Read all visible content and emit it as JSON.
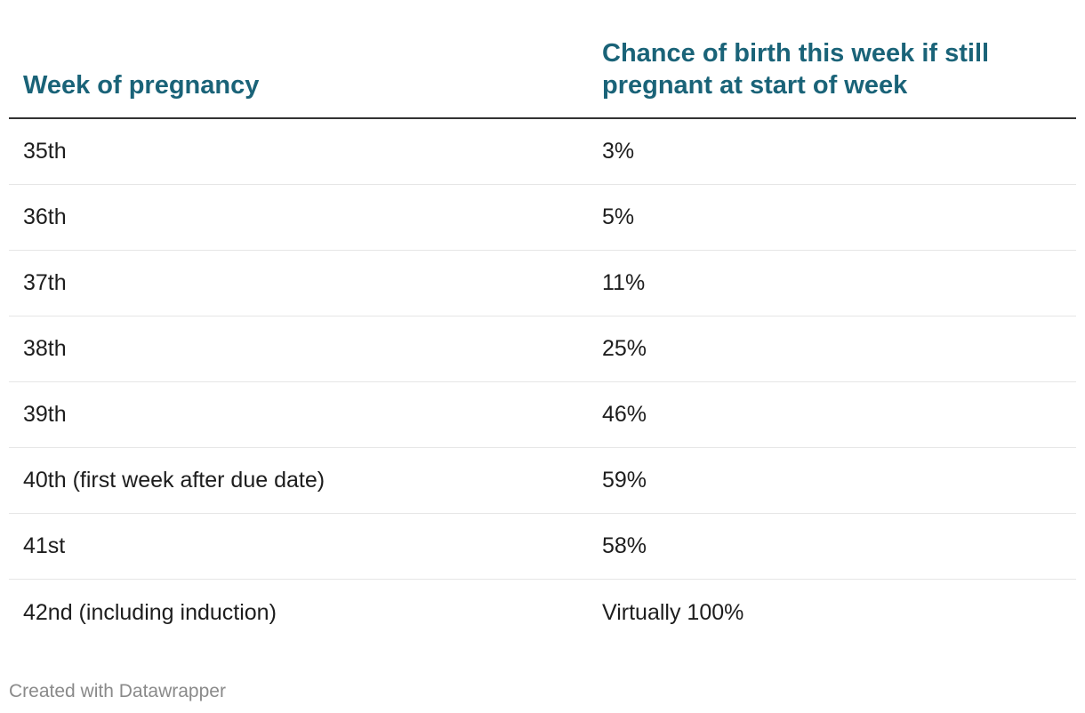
{
  "chart_data": {
    "type": "table",
    "columns": [
      "Week of pregnancy",
      "Chance of birth this week if still pregnant at start of week"
    ],
    "rows": [
      {
        "week": "35th",
        "chance": "3%"
      },
      {
        "week": "36th",
        "chance": "5%"
      },
      {
        "week": "37th",
        "chance": "11%"
      },
      {
        "week": "38th",
        "chance": "25%"
      },
      {
        "week": "39th",
        "chance": "46%"
      },
      {
        "week": "40th (first week after due date)",
        "chance": "59%"
      },
      {
        "week": "41st",
        "chance": "58%"
      },
      {
        "week": "42nd (including induction)",
        "chance": "Virtually 100%"
      }
    ]
  },
  "footer": {
    "credit": "Created with Datawrapper"
  },
  "colors": {
    "header_text": "#1a6378",
    "body_text": "#1d1d1d",
    "footer_text": "#8a8a8a",
    "header_rule": "#333333",
    "row_rule": "#e6e6e6"
  }
}
